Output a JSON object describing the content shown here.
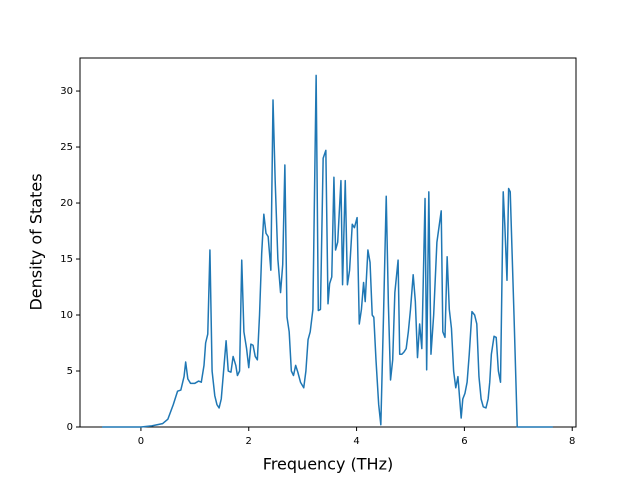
{
  "chart_data": {
    "type": "line",
    "x_label": "Frequency (THz)",
    "y_label": "Density of States",
    "color": "#1f77b4",
    "xlim": [
      -1.13,
      8.07
    ],
    "ylim": [
      0,
      32.95
    ],
    "xticks": [
      0,
      2,
      4,
      6,
      8
    ],
    "yticks": [
      0,
      5,
      10,
      15,
      20,
      25,
      30
    ],
    "grid": false,
    "x": [
      -0.72,
      0,
      0.2,
      0.4,
      0.5,
      0.6,
      0.68,
      0.74,
      0.8,
      0.83,
      0.87,
      0.92,
      1.0,
      1.07,
      1.12,
      1.17,
      1.2,
      1.24,
      1.28,
      1.32,
      1.37,
      1.41,
      1.45,
      1.49,
      1.53,
      1.58,
      1.62,
      1.67,
      1.71,
      1.76,
      1.79,
      1.83,
      1.87,
      1.91,
      1.96,
      2.0,
      2.04,
      2.08,
      2.12,
      2.16,
      2.2,
      2.24,
      2.28,
      2.32,
      2.36,
      2.41,
      2.45,
      2.49,
      2.54,
      2.59,
      2.63,
      2.67,
      2.71,
      2.75,
      2.79,
      2.83,
      2.87,
      2.91,
      2.96,
      3.02,
      3.06,
      3.1,
      3.14,
      3.19,
      3.25,
      3.29,
      3.33,
      3.38,
      3.43,
      3.47,
      3.5,
      3.54,
      3.58,
      3.61,
      3.65,
      3.71,
      3.74,
      3.79,
      3.83,
      3.87,
      3.92,
      3.96,
      4.01,
      4.05,
      4.09,
      4.13,
      4.16,
      4.21,
      4.25,
      4.29,
      4.32,
      4.36,
      4.41,
      4.45,
      4.5,
      4.55,
      4.59,
      4.63,
      4.67,
      4.71,
      4.77,
      4.8,
      4.84,
      4.88,
      4.92,
      4.96,
      5.0,
      5.05,
      5.09,
      5.13,
      5.17,
      5.21,
      5.27,
      5.3,
      5.34,
      5.38,
      5.43,
      5.49,
      5.57,
      5.6,
      5.64,
      5.68,
      5.72,
      5.76,
      5.8,
      5.84,
      5.88,
      5.94,
      5.97,
      6.01,
      6.05,
      6.09,
      6.14,
      6.19,
      6.23,
      6.27,
      6.31,
      6.35,
      6.4,
      6.44,
      6.47,
      6.5,
      6.55,
      6.59,
      6.63,
      6.67,
      6.72,
      6.75,
      6.79,
      6.82,
      6.85,
      6.92,
      6.98,
      7.2,
      7.64
    ],
    "values": [
      0,
      0,
      0.1,
      0.3,
      0.7,
      2,
      3.2,
      3.3,
      4.5,
      5.8,
      4.3,
      3.9,
      3.9,
      4.1,
      4.0,
      5.5,
      7.5,
      8.3,
      15.8,
      5,
      2.8,
      2.0,
      1.7,
      2.5,
      4.8,
      7.7,
      5,
      4.9,
      6.3,
      5.5,
      4.6,
      5,
      14.9,
      8.5,
      7,
      5.3,
      7.4,
      7.3,
      6.3,
      6.0,
      10,
      15.5,
      19,
      17.3,
      17,
      14,
      29.2,
      22,
      15,
      12,
      14.5,
      23.4,
      9.8,
      8.5,
      5,
      4.6,
      5.5,
      4.9,
      4.0,
      3.5,
      5,
      7.8,
      8.5,
      10.5,
      31.4,
      10.4,
      10.5,
      24,
      24.7,
      11,
      12.8,
      13.4,
      22.3,
      15.8,
      16.5,
      22,
      12.7,
      22,
      12.7,
      14,
      18.1,
      17.8,
      18.7,
      9.2,
      10.5,
      12.9,
      11.2,
      15.8,
      14.7,
      10,
      9.8,
      6,
      2,
      0.2,
      10,
      20.6,
      11,
      4.2,
      6,
      12,
      14.9,
      6.5,
      6.5,
      6.7,
      7,
      8.5,
      10.5,
      13.6,
      11.2,
      6.2,
      9.2,
      7,
      20.4,
      5.1,
      21,
      6.5,
      10,
      16.5,
      19.3,
      8.5,
      8,
      15.2,
      10.5,
      8.8,
      5,
      3.5,
      4.5,
      0.8,
      2.5,
      3.0,
      4,
      6.5,
      10.3,
      10,
      9.2,
      4.5,
      2.5,
      1.8,
      1.7,
      2.5,
      4,
      6.5,
      8.1,
      8,
      5,
      4,
      21,
      18,
      13.1,
      21.3,
      21,
      10,
      0,
      0,
      0
    ]
  }
}
